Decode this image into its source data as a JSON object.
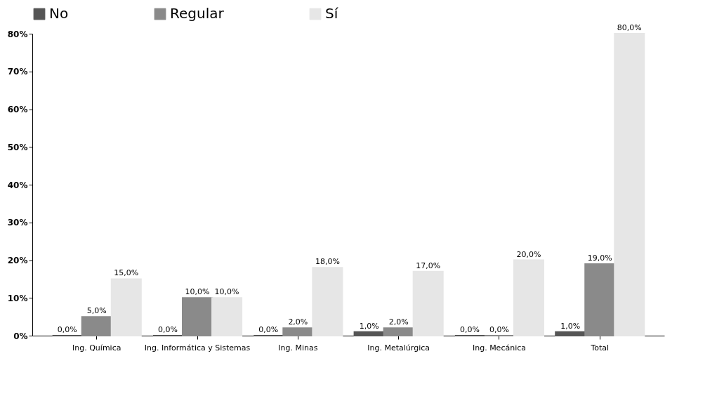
{
  "chart_data": {
    "type": "bar",
    "categories": [
      "Ing. Química",
      "Ing. Informática y Sistemas",
      "Ing. Minas",
      "Ing. Metalúrgica",
      "Ing. Mecánica",
      "Total"
    ],
    "series": [
      {
        "name": "No",
        "color": "#555555",
        "values": [
          0,
          0,
          0,
          1,
          0,
          1
        ],
        "value_labels": [
          "0,0%",
          "0,0%",
          "0,0%",
          "1,0%",
          "0,0%",
          "1,0%"
        ]
      },
      {
        "name": "Regular",
        "color": "#8a8a8a",
        "values": [
          5,
          10,
          2,
          2,
          0,
          19
        ],
        "value_labels": [
          "5,0%",
          "10,0%",
          "2,0%",
          "2,0%",
          "0,0%",
          "19,0%"
        ]
      },
      {
        "name": "Sí",
        "color": "#e6e6e6",
        "values": [
          15,
          10,
          18,
          17,
          20,
          80
        ],
        "value_labels": [
          "15,0%",
          "10,0%",
          "18,0%",
          "17,0%",
          "20,0%",
          "80,0%"
        ]
      }
    ],
    "ylim": [
      0,
      80
    ],
    "yticks": [
      {
        "value": 0,
        "label": "0%"
      },
      {
        "value": 10,
        "label": "10%"
      },
      {
        "value": 20,
        "label": "20%"
      },
      {
        "value": 30,
        "label": "30%"
      },
      {
        "value": 40,
        "label": "40%"
      },
      {
        "value": 50,
        "label": "50%"
      },
      {
        "value": 60,
        "label": "60%"
      },
      {
        "value": 70,
        "label": "70%"
      },
      {
        "value": 80,
        "label": "80%"
      }
    ],
    "grid": false,
    "legend": "top"
  }
}
